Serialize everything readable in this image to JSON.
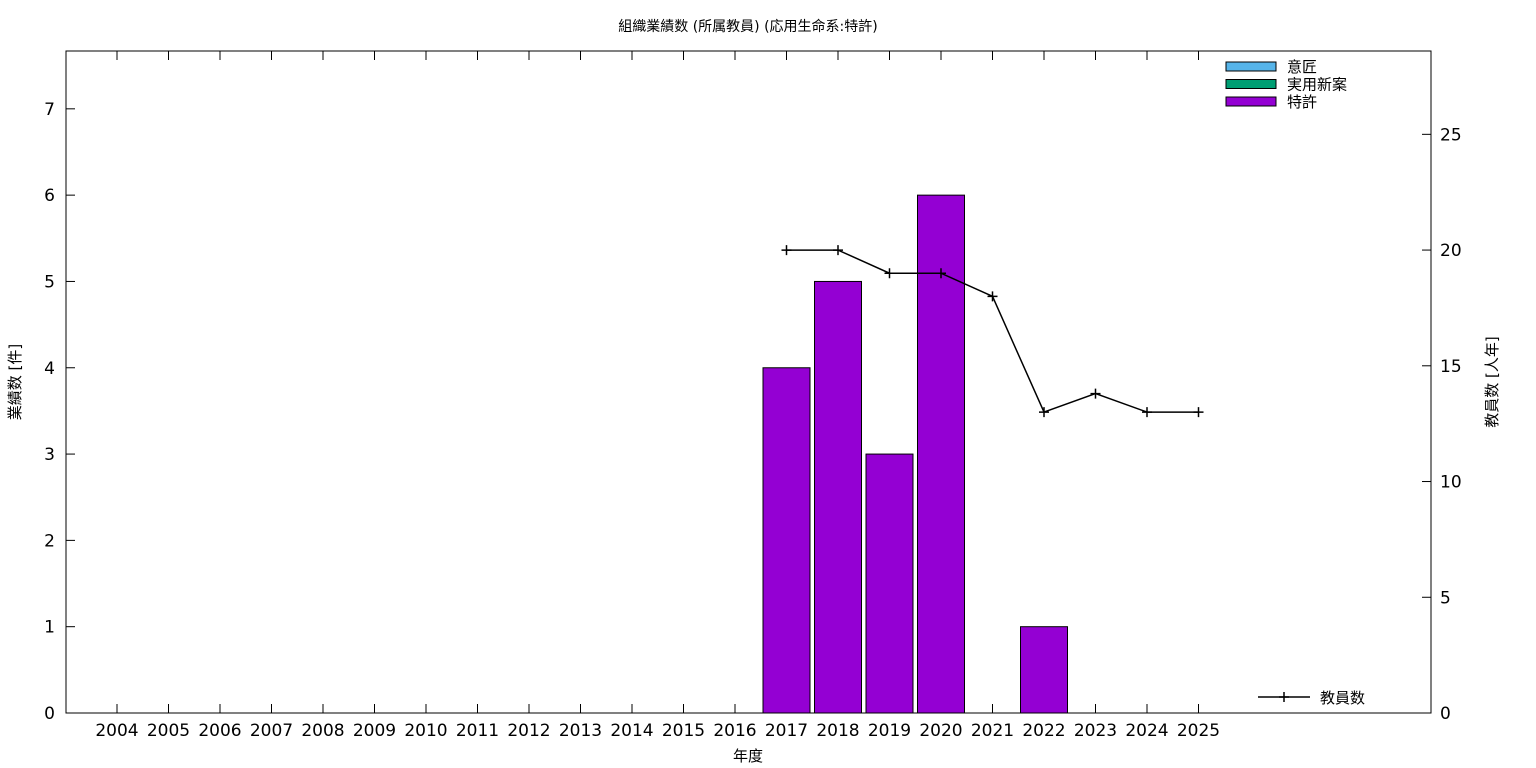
{
  "chart_data": {
    "type": "bar",
    "title": "組織業績数 (所属教員) (応用生命系:特許)",
    "xlabel": "年度",
    "ylabel": "業績数 [件]",
    "y2label": "教員数 [人年]",
    "categories": [
      "2004",
      "2005",
      "2006",
      "2007",
      "2008",
      "2009",
      "2010",
      "2011",
      "2012",
      "2013",
      "2014",
      "2015",
      "2016",
      "2017",
      "2018",
      "2019",
      "2020",
      "2021",
      "2022",
      "2023",
      "2024",
      "2025"
    ],
    "ylim": [
      0,
      7.67
    ],
    "y2lim": [
      0,
      28.6
    ],
    "yticks": [
      "0",
      "1",
      "2",
      "3",
      "4",
      "5",
      "6",
      "7"
    ],
    "y2ticks": [
      "0",
      "5",
      "10",
      "15",
      "20",
      "25"
    ],
    "series": [
      {
        "name": "意匠",
        "color": "#56b4e9",
        "values": [
          0,
          0,
          0,
          0,
          0,
          0,
          0,
          0,
          0,
          0,
          0,
          0,
          0,
          0,
          0,
          0,
          0,
          0,
          0,
          0,
          0,
          0
        ]
      },
      {
        "name": "実用新案",
        "color": "#009e73",
        "values": [
          0,
          0,
          0,
          0,
          0,
          0,
          0,
          0,
          0,
          0,
          0,
          0,
          0,
          0,
          0,
          0,
          0,
          0,
          0,
          0,
          0,
          0
        ]
      },
      {
        "name": "特許",
        "color": "#9400d3",
        "values": [
          0,
          0,
          0,
          0,
          0,
          0,
          0,
          0,
          0,
          0,
          0,
          0,
          0,
          4,
          5,
          3,
          6,
          0,
          1,
          0,
          0,
          0
        ]
      }
    ],
    "line_series": {
      "name": "教員数",
      "axis": "y2",
      "color": "#000000",
      "categories": [
        "2017",
        "2018",
        "2019",
        "2020",
        "2021",
        "2022",
        "2023",
        "2024",
        "2025"
      ],
      "values": [
        20,
        20,
        19,
        19,
        18,
        13,
        13.8,
        13,
        13
      ]
    },
    "legend_position": "top-right",
    "line_legend_position": "bottom-right",
    "grid": false
  }
}
